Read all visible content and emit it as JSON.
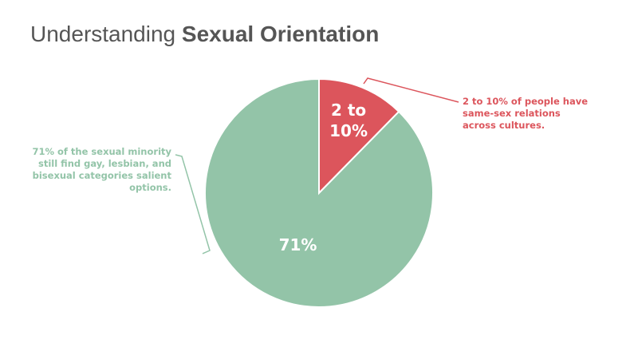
{
  "chart_data": {
    "type": "pie",
    "title": "Understanding",
    "title_emphasis": "Sexual Orientation",
    "categories": [
      null,
      null
    ],
    "values": [
      10,
      71
    ],
    "value_labels": [
      "2 to 10%",
      "71%"
    ],
    "colors": [
      "#dc555c",
      "#93c4a8"
    ],
    "annotations": [
      [
        "2 to 10% of people have",
        "same-sex relations",
        "across cultures."
      ],
      [
        "71% of the sexual minority",
        "still find gay, lesbian, and",
        "bisexual categories salient",
        "options."
      ]
    ]
  }
}
